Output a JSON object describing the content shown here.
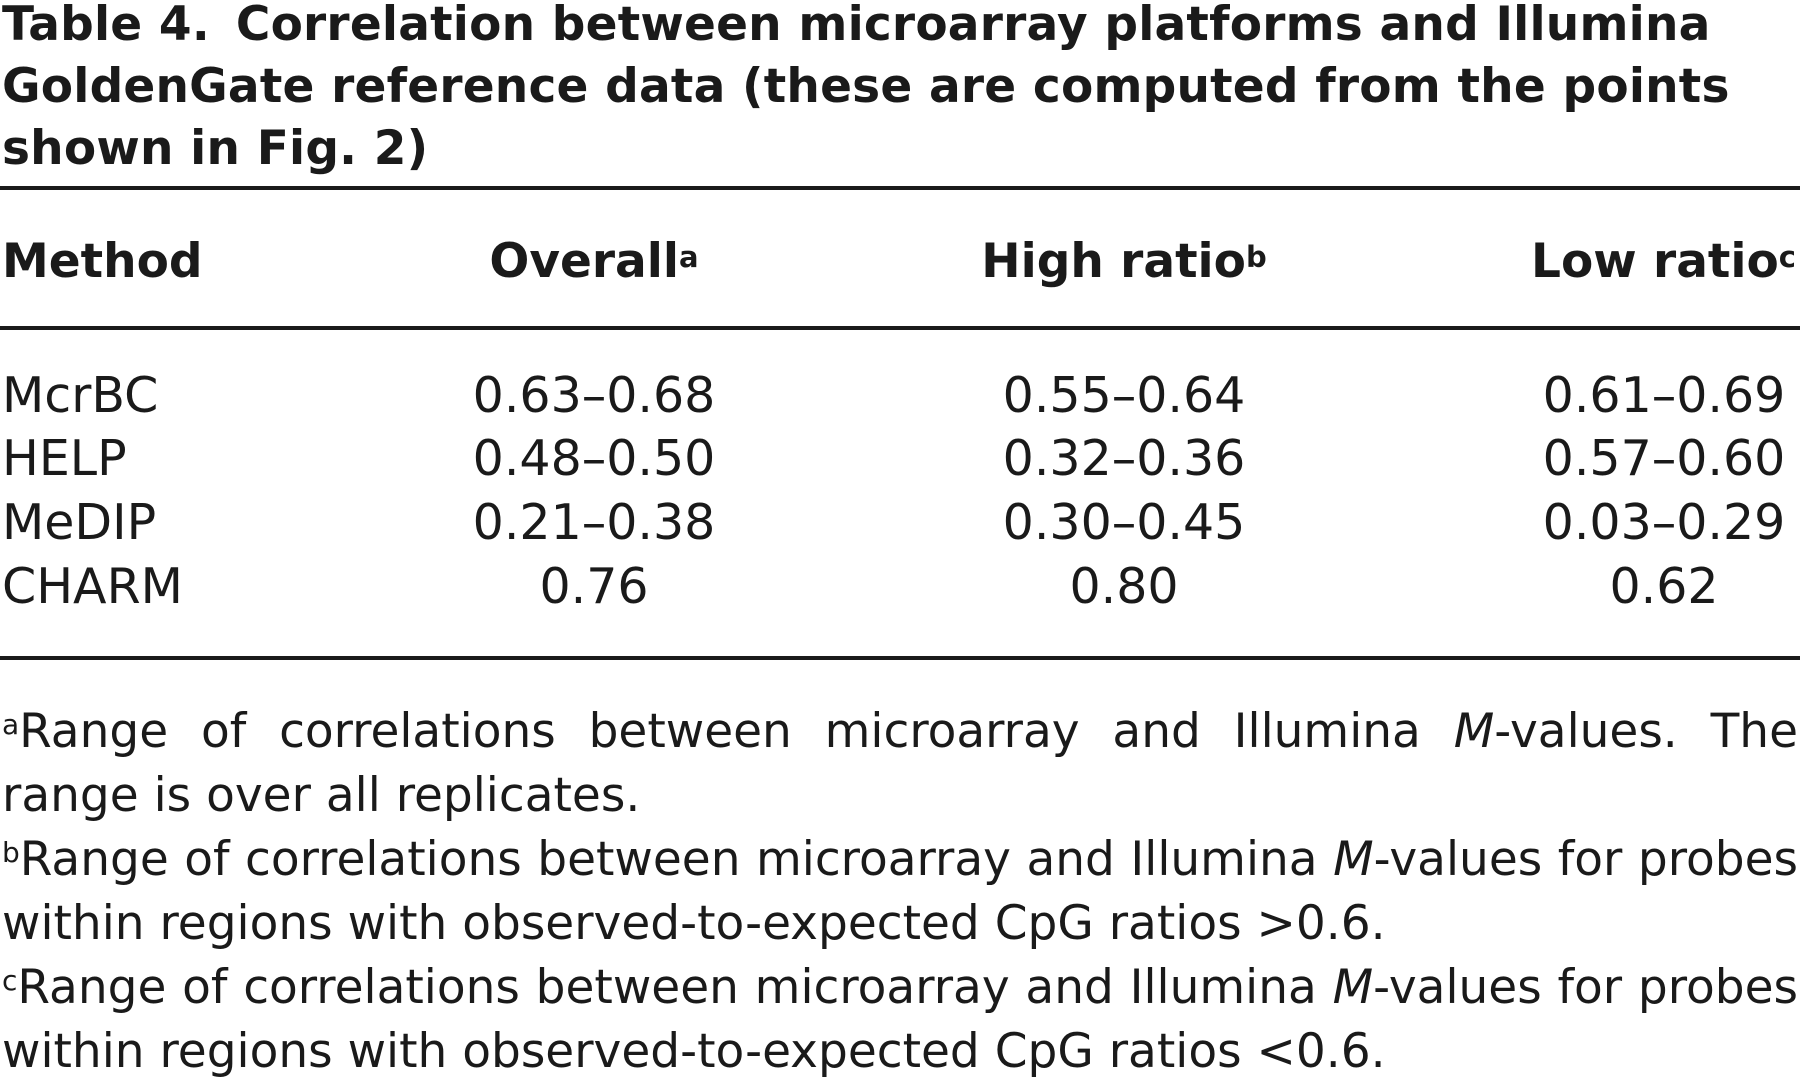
{
  "caption": {
    "label": "Table 4.",
    "text": "Correlation between microarray platforms and Illumina GoldenGate reference data (these are computed from the points shown in Fig. 2)"
  },
  "table": {
    "headers": {
      "method": "Method",
      "overall": "Overall",
      "overall_note": "a",
      "high": "High ratio",
      "high_note": "b",
      "low": "Low ratio",
      "low_note": "c"
    },
    "rows": [
      {
        "method": "McrBC",
        "overall": "0.63–0.68",
        "high": "0.55–0.64",
        "low": "0.61–0.69"
      },
      {
        "method": "HELP",
        "overall": "0.48–0.50",
        "high": "0.32–0.36",
        "low": "0.57–0.60"
      },
      {
        "method": "MeDIP",
        "overall": "0.21–0.38",
        "high": "0.30–0.45",
        "low": "0.03–0.29"
      },
      {
        "method": "CHARM",
        "overall": "0.76",
        "high": "0.80",
        "low": "0.62"
      }
    ]
  },
  "footnotes": [
    {
      "mark": "a",
      "before": "Range of correlations between microarray and Illumina ",
      "italic": "M",
      "after": "-values. The range is over all replicates."
    },
    {
      "mark": "b",
      "before": "Range of correlations between microarray and Illumina ",
      "italic": "M",
      "after": "-values for probes within regions with observed-to-expected CpG ratios >0.6."
    },
    {
      "mark": "c",
      "before": "Range of correlations between microarray and Illumina ",
      "italic": "M",
      "after": "-values for probes within regions with observed-to-expected CpG ratios <0.6."
    }
  ]
}
